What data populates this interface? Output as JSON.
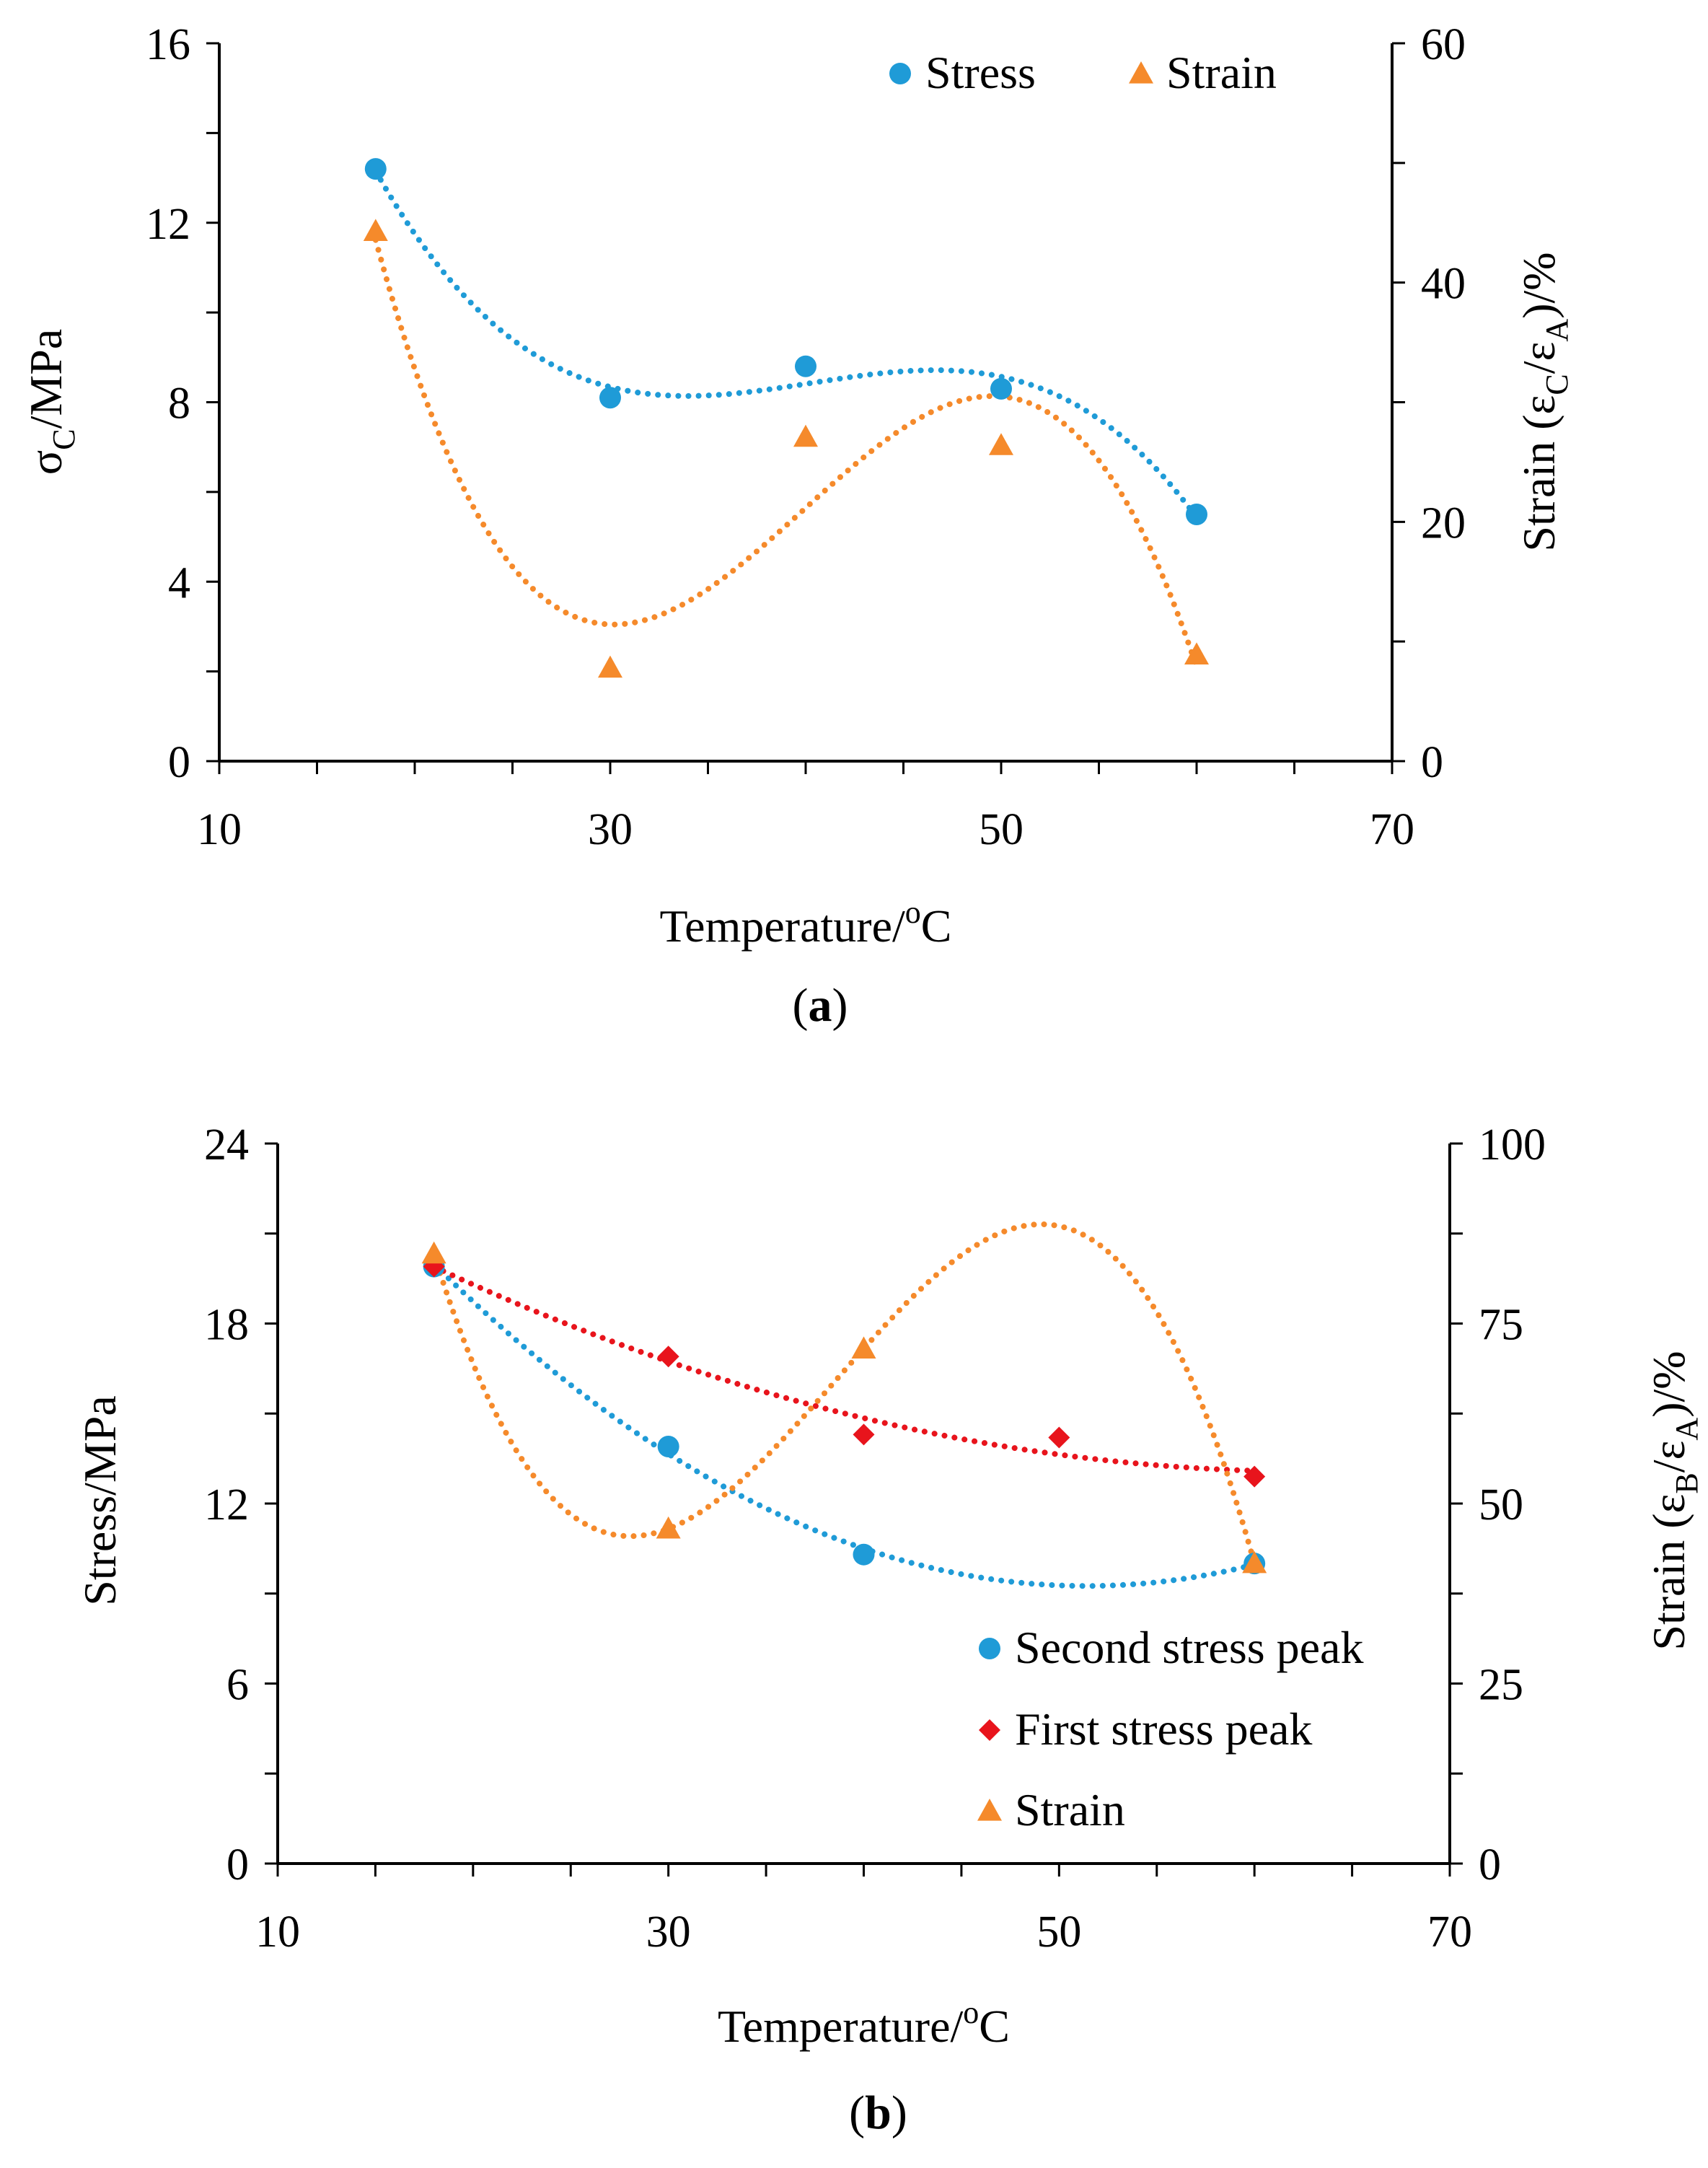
{
  "chart_data": [
    {
      "panel": "(a)",
      "caption": {
        "open": "(",
        "letter": "a",
        "close": ")"
      },
      "type": "scatter",
      "x_axis": {
        "title": "Temperature/",
        "title_sup": "o",
        "title_end": "C",
        "range": [
          10,
          70
        ],
        "ticks": [
          "10",
          "30",
          "50",
          "70"
        ],
        "tick_values": [
          10,
          30,
          50,
          70
        ],
        "minor_step": 5
      },
      "y_left": {
        "title_main": "σ",
        "title_sub": "C",
        "title_end": "/MPa",
        "range": [
          0,
          16
        ],
        "ticks": [
          "0",
          "4",
          "8",
          "12",
          "16"
        ],
        "tick_values": [
          0,
          4,
          8,
          12,
          16
        ],
        "minor_step": 2
      },
      "y_right": {
        "title_parts": [
          "Strain (ε",
          "C",
          "/ε",
          "A",
          ")/%"
        ],
        "range": [
          0,
          60
        ],
        "ticks": [
          "0",
          "20",
          "40",
          "60"
        ],
        "tick_values": [
          0,
          20,
          40,
          60
        ],
        "minor_step": 10
      },
      "series": [
        {
          "name": "Stress",
          "axis": "left",
          "marker": "circle",
          "color": "#1f9bd7",
          "x": [
            18,
            30,
            40,
            50,
            60
          ],
          "y": [
            13.2,
            8.1,
            8.8,
            8.3,
            5.5
          ],
          "trend_degree": 3
        },
        {
          "name": "Strain",
          "axis": "right",
          "marker": "triangle",
          "color": "#f58a2b",
          "x": [
            18,
            30,
            40,
            50,
            60
          ],
          "y": [
            44.3,
            7.8,
            27.1,
            26.4,
            8.9
          ],
          "trend_degree": 3
        }
      ],
      "legend": {
        "position": "top-right",
        "layout": "horizontal"
      }
    },
    {
      "panel": "(b)",
      "caption": {
        "open": "(",
        "letter": "b",
        "close": ")"
      },
      "type": "scatter",
      "x_axis": {
        "title": "Temperature/",
        "title_sup": "o",
        "title_end": "C",
        "range": [
          10,
          70
        ],
        "ticks": [
          "10",
          "30",
          "50",
          "70"
        ],
        "tick_values": [
          10,
          30,
          50,
          70
        ],
        "minor_step": 5
      },
      "y_left": {
        "title_main": "Stress/MPa",
        "range": [
          0,
          24
        ],
        "ticks": [
          "0",
          "6",
          "12",
          "18",
          "24"
        ],
        "tick_values": [
          0,
          6,
          12,
          18,
          24
        ],
        "minor_step": 3
      },
      "y_right": {
        "title_parts": [
          "Strain (ε",
          "B",
          "/ε",
          "A",
          ")/%"
        ],
        "range": [
          0,
          100
        ],
        "ticks": [
          "0",
          "25",
          "50",
          "75",
          "100"
        ],
        "tick_values": [
          0,
          25,
          50,
          75,
          100
        ],
        "minor_step": 12.5
      },
      "series": [
        {
          "name": "Second stress peak",
          "axis": "left",
          "marker": "circle",
          "color": "#1f9bd7",
          "x": [
            18,
            30,
            40,
            60
          ],
          "y": [
            19.9,
            13.9,
            10.3,
            10.0
          ],
          "trend_degree": 2
        },
        {
          "name": "First stress peak",
          "axis": "left",
          "marker": "diamond",
          "color": "#e8141c",
          "x": [
            18,
            30,
            40,
            50,
            60
          ],
          "y": [
            19.9,
            16.9,
            14.3,
            14.2,
            12.9
          ],
          "trend_degree": 2
        },
        {
          "name": "Strain",
          "axis": "right",
          "marker": "triangle",
          "color": "#f58a2b",
          "x": [
            18,
            30,
            40,
            60
          ],
          "y": [
            84.7,
            46.5,
            71.5,
            41.7
          ],
          "trend_degree": 3
        }
      ],
      "legend": {
        "position": "bottom-right",
        "layout": "vertical"
      }
    }
  ]
}
